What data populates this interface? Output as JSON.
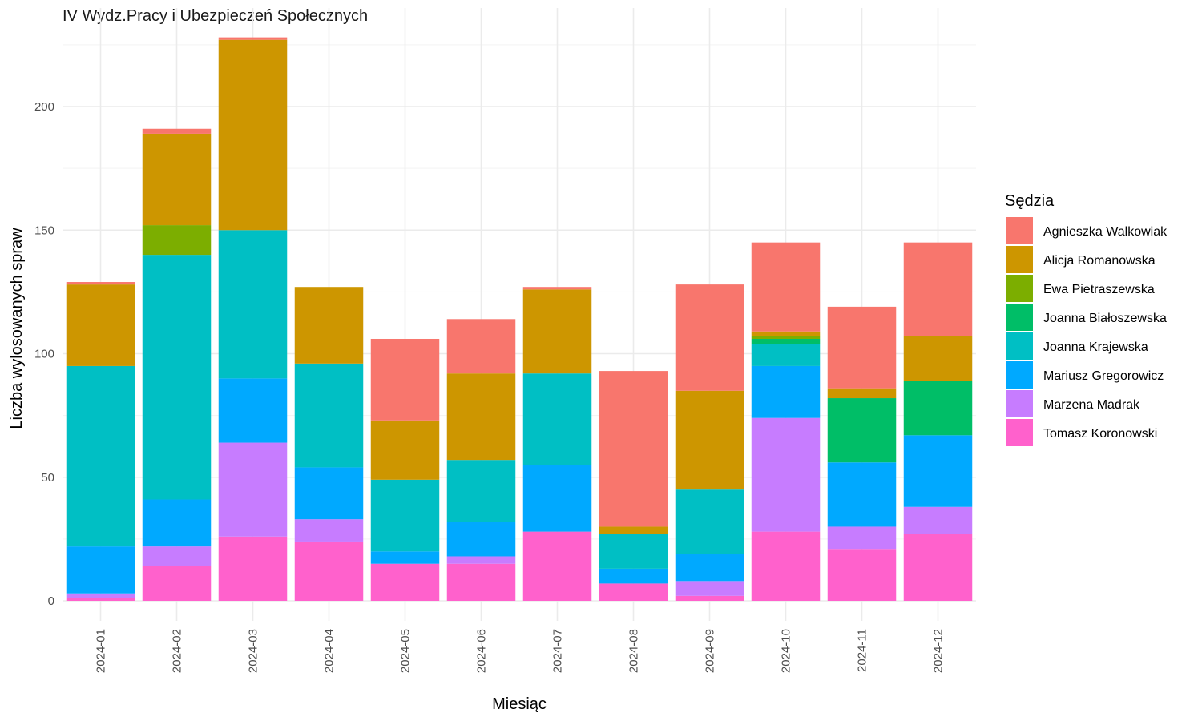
{
  "chart_data": {
    "type": "bar",
    "stacked": true,
    "title": "IV Wydz.Pracy i Ubezpieczeń Społecznych",
    "xlabel": "Miesiąc",
    "ylabel": "Liczba wylosowanych spraw",
    "ylim": [
      0,
      230
    ],
    "yticks": [
      0,
      50,
      100,
      150,
      200
    ],
    "grid": true,
    "legend": {
      "title": "Sędzia",
      "position": "right"
    },
    "categories": [
      "2024-01",
      "2024-02",
      "2024-03",
      "2024-04",
      "2024-05",
      "2024-06",
      "2024-07",
      "2024-08",
      "2024-09",
      "2024-10",
      "2024-11",
      "2024-12"
    ],
    "series": [
      {
        "name": "Tomasz Koronowski",
        "color": "#FF61CC",
        "values": [
          1,
          14,
          26,
          24,
          15,
          15,
          28,
          7,
          2,
          28,
          21,
          27
        ]
      },
      {
        "name": "Marzena Madrak",
        "color": "#C77CFF",
        "values": [
          2,
          8,
          38,
          9,
          0,
          3,
          0,
          0,
          6,
          46,
          9,
          11
        ]
      },
      {
        "name": "Mariusz Gregorowicz",
        "color": "#00A9FF",
        "values": [
          19,
          19,
          26,
          21,
          5,
          14,
          27,
          6,
          11,
          21,
          26,
          29
        ]
      },
      {
        "name": "Joanna Krajewska",
        "color": "#00BFC4",
        "values": [
          73,
          99,
          60,
          42,
          29,
          25,
          37,
          14,
          26,
          9,
          0,
          0
        ]
      },
      {
        "name": "Joanna Białoszewska",
        "color": "#00BE67",
        "values": [
          0,
          0,
          0,
          0,
          0,
          0,
          0,
          0,
          0,
          2,
          26,
          22
        ]
      },
      {
        "name": "Ewa Pietraszewska",
        "color": "#7CAE00",
        "values": [
          0,
          12,
          0,
          0,
          0,
          0,
          0,
          0,
          0,
          1,
          0,
          0
        ]
      },
      {
        "name": "Alicja Romanowska",
        "color": "#CD9600",
        "values": [
          33,
          37,
          77,
          31,
          24,
          35,
          34,
          3,
          40,
          2,
          4,
          18
        ]
      },
      {
        "name": "Agnieszka Walkowiak",
        "color": "#F8766D",
        "values": [
          1,
          2,
          1,
          0,
          33,
          22,
          1,
          63,
          43,
          36,
          33,
          38
        ]
      }
    ],
    "legend_order": [
      "Agnieszka Walkowiak",
      "Alicja Romanowska",
      "Ewa Pietraszewska",
      "Joanna Białoszewska",
      "Joanna Krajewska",
      "Mariusz Gregorowicz",
      "Marzena Madrak",
      "Tomasz Koronowski"
    ]
  }
}
